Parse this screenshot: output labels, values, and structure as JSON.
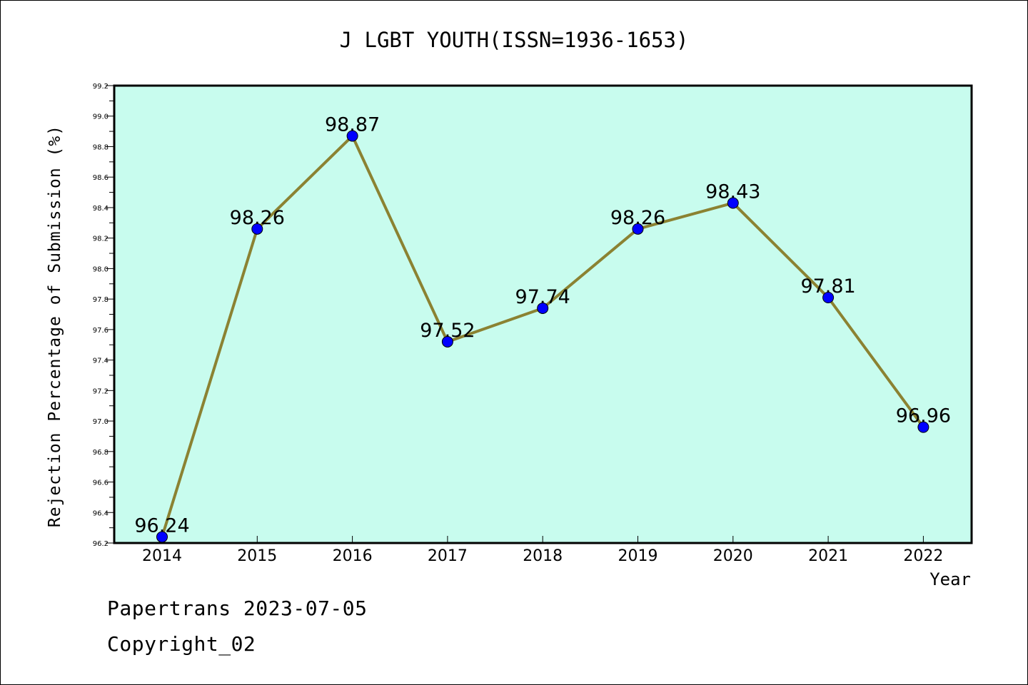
{
  "chart_data": {
    "type": "line",
    "title": "J LGBT YOUTH(ISSN=1936-1653)",
    "xlabel": "Year",
    "ylabel": "Rejection Percentage of Submission (%)",
    "x": [
      "2014",
      "2015",
      "2016",
      "2017",
      "2018",
      "2019",
      "2020",
      "2021",
      "2022"
    ],
    "values": [
      96.24,
      98.26,
      98.87,
      97.52,
      97.74,
      98.26,
      98.43,
      97.81,
      96.96
    ],
    "data_labels": [
      "96.24",
      "98.26",
      "98.87",
      "97.52",
      "97.74",
      "98.26",
      "98.43",
      "97.81",
      "96.96"
    ],
    "ylim": [
      96.2,
      99.2
    ],
    "yticks": [
      "96.2",
      "96.4",
      "96.6",
      "96.8",
      "97.0",
      "97.2",
      "97.4",
      "97.6",
      "97.8",
      "98.0",
      "98.2",
      "98.4",
      "98.6",
      "98.8",
      "99.0",
      "99.2"
    ],
    "grid": false,
    "legend": "none",
    "colors": {
      "plot_background": "#c8fcee",
      "line": "#8b8232",
      "marker": "#0000ff"
    }
  },
  "footer": {
    "publisher": "Papertrans 2023-07-05",
    "copyright": "Copyright_02"
  }
}
